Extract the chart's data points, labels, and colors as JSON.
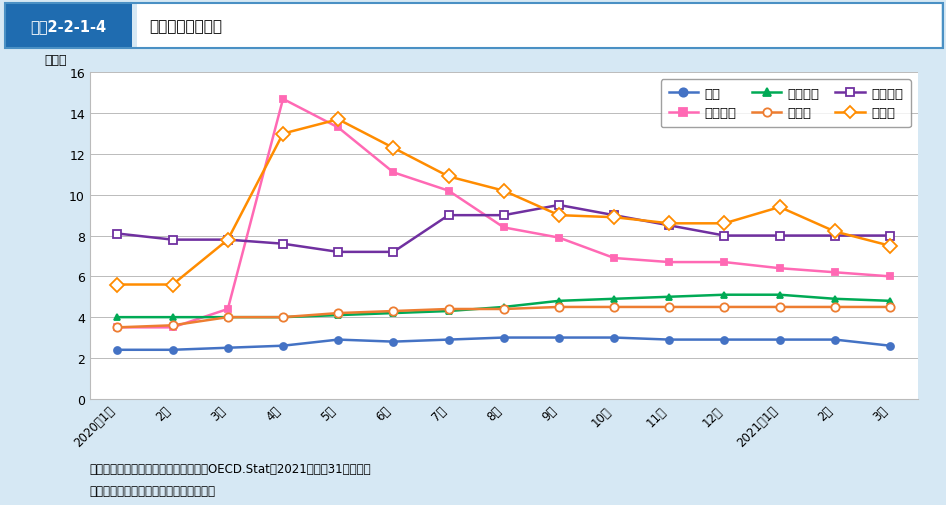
{
  "header_label": "図表2-2-1-4",
  "header_title": "各国の完全失業率",
  "ylabel": "（％）",
  "x_labels": [
    "2020年1月",
    "2月",
    "3月",
    "4月",
    "5月",
    "6月",
    "7月",
    "8月",
    "9月",
    "10月",
    "11月",
    "12月",
    "2021年1月",
    "2月",
    "3月"
  ],
  "ylim": [
    0,
    16
  ],
  "yticks": [
    0,
    2,
    4,
    6,
    8,
    10,
    12,
    14,
    16
  ],
  "series": [
    {
      "name": "日本",
      "color": "#4472C4",
      "marker": "o",
      "marker_filled": true,
      "marker_size": 5,
      "linewidth": 1.8,
      "data": [
        2.4,
        2.4,
        2.5,
        2.6,
        2.9,
        2.8,
        2.9,
        3.0,
        3.0,
        3.0,
        2.9,
        2.9,
        2.9,
        2.9,
        2.6
      ]
    },
    {
      "name": "アメリカ",
      "color": "#FF69B4",
      "marker": "s",
      "marker_filled": true,
      "marker_size": 5,
      "linewidth": 1.8,
      "data": [
        3.5,
        3.5,
        4.4,
        14.7,
        13.3,
        11.1,
        10.2,
        8.4,
        7.9,
        6.9,
        6.7,
        6.7,
        6.4,
        6.2,
        6.0
      ]
    },
    {
      "name": "イギリス",
      "color": "#00AA55",
      "marker": "^",
      "marker_filled": true,
      "marker_size": 5,
      "linewidth": 1.8,
      "data": [
        4.0,
        4.0,
        4.0,
        4.0,
        4.1,
        4.2,
        4.3,
        4.5,
        4.8,
        4.9,
        5.0,
        5.1,
        5.1,
        4.9,
        4.8
      ]
    },
    {
      "name": "ドイツ",
      "color": "#ED7D31",
      "marker": "o",
      "marker_filled": false,
      "marker_size": 6,
      "linewidth": 1.8,
      "data": [
        3.5,
        3.6,
        4.0,
        4.0,
        4.2,
        4.3,
        4.4,
        4.4,
        4.5,
        4.5,
        4.5,
        4.5,
        4.5,
        4.5,
        4.5
      ]
    },
    {
      "name": "フランス",
      "color": "#7030A0",
      "marker": "s",
      "marker_filled": false,
      "marker_size": 6,
      "linewidth": 1.8,
      "data": [
        8.1,
        7.8,
        7.8,
        7.6,
        7.2,
        7.2,
        9.0,
        9.0,
        9.5,
        9.0,
        8.5,
        8.0,
        8.0,
        8.0,
        8.0
      ]
    },
    {
      "name": "カナダ",
      "color": "#FF8C00",
      "marker": "D",
      "marker_filled": false,
      "marker_size": 7,
      "linewidth": 1.8,
      "data": [
        5.6,
        5.6,
        7.8,
        13.0,
        13.7,
        12.3,
        10.9,
        10.2,
        9.0,
        8.9,
        8.6,
        8.6,
        9.4,
        8.2,
        7.5
      ]
    }
  ],
  "footer_line1": "資料：総務省統計局「労働力調査」、OECD.Stat（2021年５月31日現在）",
  "footer_line2": "（注）　季節調整済値。ドイツは推計値",
  "background_color": "#D6E8F4",
  "plot_background": "#FFFFFF",
  "header_bg": "#1F6CB0",
  "header_label_color": "#FFFFFF",
  "header_title_bg": "#FFFFFF",
  "header_border_color": "#4A90C4"
}
